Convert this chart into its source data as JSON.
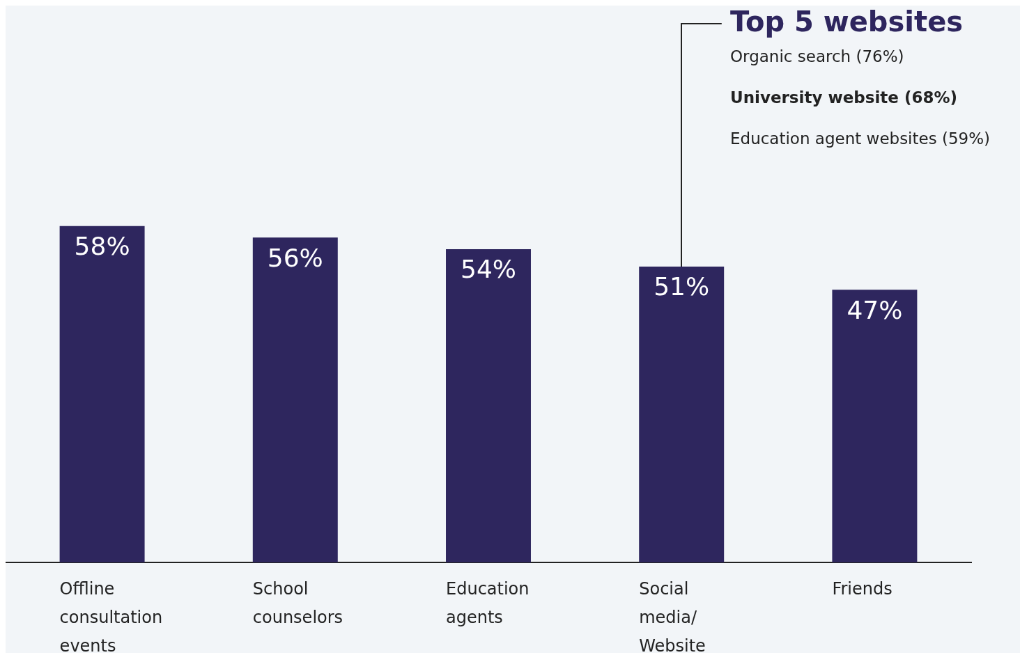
{
  "chart_data": {
    "type": "bar",
    "categories": [
      "Offline consultation events",
      "School counselors",
      "Education agents",
      "Social media/ Website",
      "Friends"
    ],
    "values": [
      58,
      56,
      54,
      51,
      47
    ],
    "color": "#2e265e",
    "value_labels": [
      "58%",
      "56%",
      "54%",
      "51%",
      "47%"
    ],
    "grid": false,
    "legend": false,
    "tick_labels": "x",
    "annotations": [
      "Top 5 websites",
      "Organic search (76%)",
      "University website (68%)",
      "Education agent websites (59%)"
    ]
  }
}
